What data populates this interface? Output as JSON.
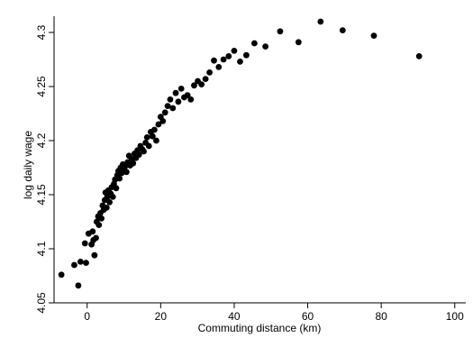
{
  "chart_data": {
    "type": "scatter",
    "title": "",
    "xlabel": "Commuting distance (km)",
    "ylabel": "log daily wage",
    "xlim": [
      -9,
      103
    ],
    "ylim": [
      4.05,
      4.315
    ],
    "xticks": [
      0,
      20,
      40,
      60,
      80,
      100
    ],
    "yticks": [
      4.05,
      4.1,
      4.15,
      4.2,
      4.25,
      4.3
    ],
    "xtick_labels": [
      "0",
      "20",
      "40",
      "60",
      "80",
      "100"
    ],
    "ytick_labels": [
      "4.05",
      "4.1",
      "4.15",
      "4.2",
      "4.25",
      "4.3"
    ],
    "grid": false,
    "legend": "none",
    "marker_color": "#000000",
    "series": [
      {
        "x": [
          -7.0,
          -3.5,
          -2.4,
          -1.8,
          -0.6,
          -0.3,
          0.4,
          1.2,
          1.5,
          1.7,
          2.0,
          2.4,
          2.6,
          3.0,
          3.2,
          3.6,
          3.9,
          4.2,
          4.5,
          4.8,
          5.0,
          5.3,
          5.5,
          5.8,
          6.1,
          6.4,
          6.7,
          7.0,
          7.3,
          7.6,
          7.9,
          8.2,
          8.5,
          8.8,
          9.1,
          9.4,
          9.7,
          10.0,
          10.3,
          10.7,
          11.0,
          11.4,
          11.7,
          12.1,
          12.5,
          12.9,
          13.3,
          13.7,
          14.1,
          14.5,
          15.0,
          15.4,
          15.9,
          16.3,
          16.8,
          17.3,
          17.8,
          18.3,
          18.8,
          19.4,
          20.0,
          20.6,
          21.2,
          21.9,
          22.6,
          23.3,
          24.1,
          24.8,
          25.6,
          26.4,
          27.3,
          28.2,
          29.1,
          30.1,
          31.1,
          32.2,
          33.3,
          34.5,
          35.8,
          37.1,
          38.5,
          40.0,
          41.6,
          43.3,
          45.5,
          48.5,
          52.5,
          57.5,
          63.5,
          69.5,
          78.0,
          90.3
        ],
        "y": [
          4.076,
          4.085,
          4.066,
          4.088,
          4.105,
          4.087,
          4.114,
          4.104,
          4.116,
          4.108,
          4.094,
          4.11,
          4.125,
          4.13,
          4.122,
          4.133,
          4.128,
          4.14,
          4.136,
          4.145,
          4.152,
          4.138,
          4.148,
          4.154,
          4.143,
          4.151,
          4.157,
          4.148,
          4.16,
          4.164,
          4.156,
          4.168,
          4.172,
          4.165,
          4.175,
          4.17,
          4.178,
          4.173,
          4.176,
          4.171,
          4.18,
          4.186,
          4.177,
          4.183,
          4.179,
          4.188,
          4.184,
          4.191,
          4.187,
          4.195,
          4.192,
          4.19,
          4.198,
          4.203,
          4.195,
          4.208,
          4.204,
          4.21,
          4.2,
          4.215,
          4.222,
          4.218,
          4.226,
          4.232,
          4.238,
          4.23,
          4.244,
          4.236,
          4.248,
          4.24,
          4.242,
          4.238,
          4.251,
          4.255,
          4.252,
          4.257,
          4.263,
          4.274,
          4.268,
          4.275,
          4.278,
          4.283,
          4.273,
          4.279,
          4.29,
          4.287,
          4.301,
          4.291,
          4.31,
          4.302,
          4.297,
          4.278
        ]
      }
    ]
  }
}
